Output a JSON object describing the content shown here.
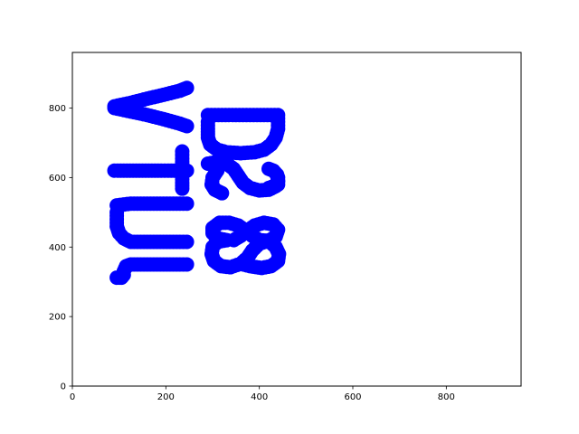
{
  "chart_data": {
    "type": "scatter",
    "title": "",
    "xlabel": "",
    "ylabel": "",
    "xlim": [
      0,
      960
    ],
    "ylim": [
      0,
      960
    ],
    "xticks": [
      0,
      200,
      400,
      600,
      800
    ],
    "yticks": [
      0,
      200,
      400,
      600,
      800
    ],
    "xtick_labels": [
      "0",
      "200",
      "400",
      "600",
      "800"
    ],
    "ytick_labels": [
      "0",
      "200",
      "400",
      "600",
      "800"
    ],
    "grid": false,
    "legend": "none",
    "series": [
      {
        "color": "#0000ff",
        "marker": "circle",
        "strokes": [
          [
            [
              90,
              805
            ],
            [
              125,
              815
            ],
            [
              160,
              827
            ],
            [
              195,
              838
            ],
            [
              230,
              850
            ],
            [
              245,
              858
            ]
          ],
          [
            [
              90,
              800
            ],
            [
              125,
              790
            ],
            [
              160,
              780
            ],
            [
              195,
              768
            ],
            [
              230,
              755
            ],
            [
              245,
              748
            ]
          ],
          [
            [
              90,
              620
            ],
            [
              110,
              620
            ],
            [
              130,
              620
            ],
            [
              150,
              620
            ],
            [
              170,
              620
            ],
            [
              190,
              620
            ],
            [
              205,
              620
            ],
            [
              225,
              620
            ],
            [
              245,
              620
            ]
          ],
          [
            [
              235,
              675
            ],
            [
              235,
              655
            ],
            [
              235,
              635
            ],
            [
              235,
              605
            ],
            [
              235,
              585
            ],
            [
              235,
              568
            ]
          ],
          [
            [
              95,
              520
            ],
            [
              125,
              525
            ],
            [
              160,
              525
            ],
            [
              195,
              525
            ],
            [
              230,
              525
            ],
            [
              245,
              525
            ]
          ],
          [
            [
              95,
              500
            ],
            [
              95,
              480
            ],
            [
              95,
              460
            ],
            [
              100,
              440
            ],
            [
              110,
              425
            ],
            [
              125,
              415
            ],
            [
              160,
              415
            ],
            [
              195,
              415
            ],
            [
              230,
              415
            ],
            [
              245,
              415
            ]
          ],
          [
            [
              95,
              312
            ],
            [
              105,
              312
            ],
            [
              110,
              320
            ],
            [
              110,
              330
            ],
            [
              115,
              345
            ],
            [
              125,
              350
            ],
            [
              160,
              350
            ],
            [
              195,
              350
            ],
            [
              230,
              350
            ],
            [
              245,
              350
            ]
          ],
          [
            [
              290,
              780
            ],
            [
              320,
              780
            ],
            [
              350,
              780
            ],
            [
              380,
              780
            ],
            [
              410,
              780
            ],
            [
              440,
              780
            ],
            [
              440,
              760
            ],
            [
              440,
              740
            ],
            [
              435,
              715
            ],
            [
              425,
              695
            ],
            [
              410,
              680
            ],
            [
              390,
              673
            ],
            [
              360,
              670
            ],
            [
              330,
              673
            ],
            [
              310,
              680
            ],
            [
              295,
              695
            ],
            [
              290,
              715
            ],
            [
              290,
              740
            ],
            [
              290,
              760
            ]
          ],
          [
            [
              290,
              640
            ],
            [
              310,
              645
            ],
            [
              330,
              640
            ],
            [
              345,
              625
            ],
            [
              355,
              605
            ],
            [
              365,
              585
            ],
            [
              380,
              570
            ],
            [
              400,
              563
            ],
            [
              420,
              565
            ],
            [
              435,
              575
            ],
            [
              440,
              590
            ],
            [
              438,
              608
            ],
            [
              430,
              620
            ],
            [
              420,
              625
            ]
          ],
          [
            [
              310,
              620
            ],
            [
              300,
              600
            ],
            [
              298,
              580
            ],
            [
              305,
              565
            ],
            [
              320,
              555
            ]
          ],
          [
            [
              420,
              570
            ],
            [
              440,
              580
            ],
            [
              440,
              600
            ]
          ],
          [
            [
              330,
              420
            ],
            [
              310,
              425
            ],
            [
              300,
              440
            ],
            [
              300,
              455
            ],
            [
              315,
              470
            ],
            [
              335,
              470
            ],
            [
              355,
              462
            ],
            [
              370,
              448
            ],
            [
              385,
              432
            ],
            [
              400,
              420
            ],
            [
              420,
              418
            ],
            [
              435,
              430
            ],
            [
              440,
              450
            ],
            [
              430,
              465
            ],
            [
              410,
              470
            ],
            [
              390,
              462
            ],
            [
              375,
              448
            ],
            [
              360,
              432
            ],
            [
              345,
              420
            ]
          ],
          [
            [
              330,
              420
            ],
            [
              310,
              415
            ],
            [
              300,
              400
            ],
            [
              298,
              380
            ],
            [
              303,
              360
            ],
            [
              318,
              345
            ],
            [
              338,
              342
            ],
            [
              360,
              352
            ],
            [
              375,
              370
            ],
            [
              385,
              390
            ],
            [
              400,
              410
            ],
            [
              420,
              418
            ]
          ],
          [
            [
              360,
              352
            ],
            [
              380,
              345
            ],
            [
              405,
              340
            ],
            [
              425,
              345
            ],
            [
              440,
              360
            ],
            [
              442,
              380
            ],
            [
              435,
              400
            ],
            [
              420,
              418
            ]
          ]
        ]
      }
    ]
  }
}
